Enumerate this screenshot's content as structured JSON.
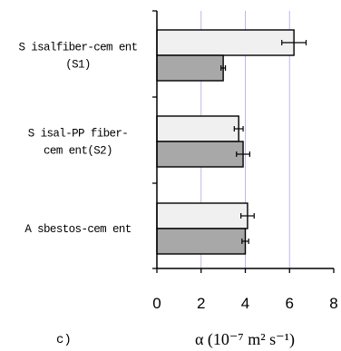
{
  "chart_data": {
    "type": "bar",
    "orientation": "horizontal",
    "panel_label": "c)",
    "categories": [
      {
        "lines": [
          "S isalfiber-cem ent",
          "(S1)"
        ]
      },
      {
        "lines": [
          "S isal-PP fiber-",
          "cem ent(S2)"
        ]
      },
      {
        "lines": [
          "A sbestos-cem ent"
        ]
      }
    ],
    "series": [
      {
        "color": "#f0f0f0",
        "values": [
          6.2,
          3.7,
          4.1
        ],
        "errors": [
          0.55,
          0.2,
          0.3
        ]
      },
      {
        "color": "#a8a8a8",
        "values": [
          3.0,
          3.9,
          4.0
        ],
        "errors": [
          0.1,
          0.3,
          0.15
        ]
      }
    ],
    "xlim": [
      0,
      8
    ],
    "xticks": [
      "0",
      "2",
      "4",
      "6",
      "8"
    ],
    "xlabel": "α (10⁻⁷ m² s⁻¹)",
    "grid": "vertical",
    "grid_color": "#b8b8e8",
    "legend": "none"
  }
}
